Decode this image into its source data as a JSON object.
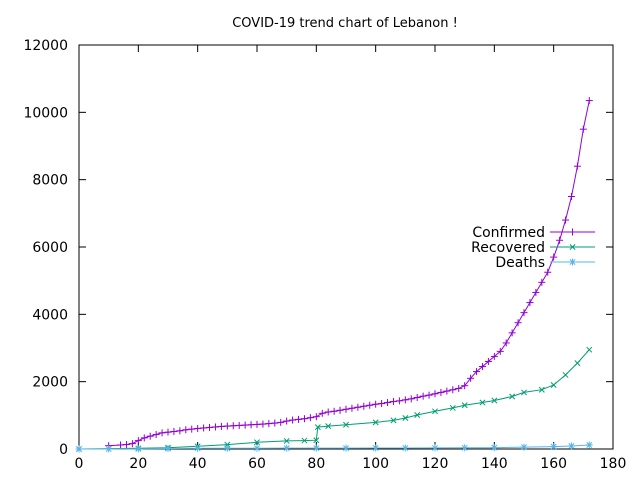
{
  "chart_data": {
    "type": "line",
    "title": "COVID-19 trend chart of Lebanon !",
    "xlabel": "",
    "ylabel": "",
    "xlim": [
      0,
      180
    ],
    "ylim": [
      0,
      12000
    ],
    "x_ticks": [
      0,
      20,
      40,
      60,
      80,
      100,
      120,
      140,
      160,
      180
    ],
    "y_ticks": [
      0,
      2000,
      4000,
      6000,
      8000,
      10000,
      12000
    ],
    "grid": false,
    "legend_position": "right",
    "series": [
      {
        "name": "Confirmed",
        "color": "#9400d3",
        "marker": "plus",
        "points": [
          [
            10,
            99
          ],
          [
            14,
            120
          ],
          [
            16,
            133
          ],
          [
            18,
            160
          ],
          [
            20,
            250
          ],
          [
            22,
            330
          ],
          [
            24,
            380
          ],
          [
            26,
            430
          ],
          [
            28,
            480
          ],
          [
            30,
            500
          ],
          [
            32,
            520
          ],
          [
            34,
            540
          ],
          [
            36,
            570
          ],
          [
            38,
            590
          ],
          [
            40,
            610
          ],
          [
            42,
            625
          ],
          [
            44,
            640
          ],
          [
            46,
            655
          ],
          [
            48,
            670
          ],
          [
            50,
            680
          ],
          [
            52,
            690
          ],
          [
            54,
            700
          ],
          [
            56,
            710
          ],
          [
            58,
            720
          ],
          [
            60,
            730
          ],
          [
            62,
            740
          ],
          [
            64,
            755
          ],
          [
            66,
            770
          ],
          [
            68,
            790
          ],
          [
            70,
            830
          ],
          [
            72,
            860
          ],
          [
            74,
            880
          ],
          [
            76,
            900
          ],
          [
            78,
            930
          ],
          [
            80,
            960
          ],
          [
            82,
            1060
          ],
          [
            84,
            1100
          ],
          [
            86,
            1120
          ],
          [
            88,
            1150
          ],
          [
            90,
            1180
          ],
          [
            92,
            1210
          ],
          [
            94,
            1240
          ],
          [
            96,
            1270
          ],
          [
            98,
            1300
          ],
          [
            100,
            1330
          ],
          [
            102,
            1350
          ],
          [
            104,
            1380
          ],
          [
            106,
            1410
          ],
          [
            108,
            1430
          ],
          [
            110,
            1460
          ],
          [
            112,
            1490
          ],
          [
            114,
            1530
          ],
          [
            116,
            1570
          ],
          [
            118,
            1600
          ],
          [
            120,
            1640
          ],
          [
            122,
            1680
          ],
          [
            124,
            1720
          ],
          [
            126,
            1760
          ],
          [
            128,
            1800
          ],
          [
            130,
            1880
          ],
          [
            132,
            2100
          ],
          [
            134,
            2300
          ],
          [
            136,
            2450
          ],
          [
            138,
            2600
          ],
          [
            140,
            2750
          ],
          [
            142,
            2900
          ],
          [
            144,
            3150
          ],
          [
            146,
            3450
          ],
          [
            148,
            3750
          ],
          [
            150,
            4050
          ],
          [
            152,
            4350
          ],
          [
            154,
            4650
          ],
          [
            156,
            4950
          ],
          [
            158,
            5250
          ],
          [
            160,
            5700
          ],
          [
            162,
            6200
          ],
          [
            164,
            6800
          ],
          [
            166,
            7500
          ],
          [
            168,
            8400
          ],
          [
            170,
            9500
          ],
          [
            172,
            10350
          ]
        ]
      },
      {
        "name": "Recovered",
        "color": "#009e73",
        "marker": "cross",
        "points": [
          [
            0,
            0
          ],
          [
            20,
            20
          ],
          [
            30,
            40
          ],
          [
            40,
            80
          ],
          [
            50,
            130
          ],
          [
            60,
            200
          ],
          [
            70,
            240
          ],
          [
            76,
            250
          ],
          [
            80,
            260
          ],
          [
            80.5,
            650
          ],
          [
            84,
            680
          ],
          [
            90,
            720
          ],
          [
            100,
            790
          ],
          [
            106,
            850
          ],
          [
            110,
            920
          ],
          [
            114,
            1010
          ],
          [
            120,
            1120
          ],
          [
            126,
            1220
          ],
          [
            130,
            1300
          ],
          [
            136,
            1380
          ],
          [
            140,
            1440
          ],
          [
            146,
            1560
          ],
          [
            150,
            1680
          ],
          [
            156,
            1760
          ],
          [
            160,
            1900
          ],
          [
            164,
            2200
          ],
          [
            168,
            2550
          ],
          [
            172,
            2950
          ]
        ]
      },
      {
        "name": "Deaths",
        "color": "#56b4e9",
        "marker": "star",
        "points": [
          [
            0,
            0
          ],
          [
            10,
            0
          ],
          [
            20,
            4
          ],
          [
            30,
            12
          ],
          [
            40,
            20
          ],
          [
            50,
            22
          ],
          [
            60,
            24
          ],
          [
            70,
            26
          ],
          [
            80,
            26
          ],
          [
            90,
            27
          ],
          [
            100,
            29
          ],
          [
            110,
            30
          ],
          [
            120,
            32
          ],
          [
            130,
            35
          ],
          [
            140,
            40
          ],
          [
            150,
            55
          ],
          [
            160,
            70
          ],
          [
            166,
            90
          ],
          [
            172,
            120
          ]
        ]
      }
    ]
  }
}
